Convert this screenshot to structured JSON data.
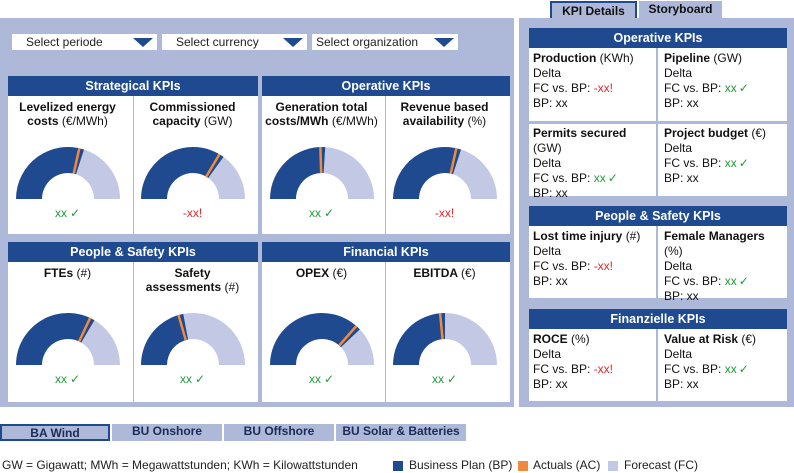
{
  "tabs": {
    "kpi_details": "KPI Details",
    "storyboard": "Storyboard"
  },
  "filters": {
    "period": "Select periode",
    "currency": "Select currency",
    "organization": "Select organization"
  },
  "groups": {
    "strategical": "Strategical KPIs",
    "operative": "Operative KPIs",
    "people_safety": "People & Safety KPIs",
    "financial": "Financial KPIs"
  },
  "tiles": [
    {
      "title": "Levelized energy",
      "title2": "costs",
      "unit": "(€/MWh)",
      "status": "xx",
      "mark": "✓",
      "state": "ok",
      "bp_share": 0.6,
      "actual": 0.57
    },
    {
      "title": "Commissioned",
      "title2": "capacity",
      "unit": "(GW)",
      "status": "-xx!",
      "mark": "",
      "state": "bad",
      "bp_share": 0.7,
      "actual": 0.67
    },
    {
      "title": "Generation total",
      "title2": "costs/MWh",
      "unit": "(€/MWh)",
      "status": "xx",
      "mark": "✓",
      "state": "ok",
      "bp_share": 0.52,
      "actual": 0.49
    },
    {
      "title": "Revenue based",
      "title2": "availability",
      "unit": "(%)",
      "status": "-xx!",
      "mark": "",
      "state": "bad",
      "bp_share": 0.6,
      "actual": 0.57
    },
    {
      "title": "FTEs",
      "title2": "",
      "unit": "(#)",
      "status": "xx",
      "mark": "✓",
      "state": "ok",
      "bp_share": 0.67,
      "actual": 0.64
    },
    {
      "title": "Safety",
      "title2": "assessments",
      "unit": "(#)",
      "status": "xx",
      "mark": "✓",
      "state": "ok",
      "bp_share": 0.44,
      "actual": 0.41
    },
    {
      "title": "OPEX",
      "title2": "",
      "unit": "(€)",
      "status": "xx",
      "mark": "✓",
      "state": "ok",
      "bp_share": 0.76,
      "actual": 0.73
    },
    {
      "title": "EBITDA",
      "title2": "",
      "unit": "(€)",
      "status": "xx",
      "mark": "✓",
      "state": "ok",
      "bp_share": 0.5,
      "actual": 0.47
    }
  ],
  "right": {
    "operative_title": "Operative KPIs",
    "people_title": "People & Safety KPIs",
    "finance_title": "Finanzielle KPIs",
    "cells": [
      {
        "name": "Production",
        "unit": "(KWh)",
        "delta": "Delta",
        "fc_label": "FC vs. BP:",
        "fc": "-xx!",
        "fc_mark": "",
        "state": "bad",
        "bp": "BP: xx"
      },
      {
        "name": "Pipeline",
        "unit": "(GW)",
        "delta": "Delta",
        "fc_label": "FC vs. BP:",
        "fc": "xx",
        "fc_mark": "✓",
        "state": "ok",
        "bp": "BP: xx"
      },
      {
        "name": "Permits secured",
        "unit": "(GW)",
        "delta": "Delta",
        "fc_label": "FC vs. BP:",
        "fc": "xx",
        "fc_mark": "✓",
        "state": "ok",
        "bp": "BP: xx"
      },
      {
        "name": "Project budget",
        "unit": "(€)",
        "delta": "Delta",
        "fc_label": "FC vs. BP:",
        "fc": "xx",
        "fc_mark": "✓",
        "state": "ok",
        "bp": "BP: xx"
      },
      {
        "name": "Lost time injury",
        "unit": "(#)",
        "delta": "Delta",
        "fc_label": "FC vs. BP:",
        "fc": "-xx!",
        "fc_mark": "",
        "state": "bad",
        "bp": "BP: xx"
      },
      {
        "name": "Female Managers",
        "unit": "(%)",
        "delta": "Delta",
        "fc_label": "FC vs. BP:",
        "fc": "xx",
        "fc_mark": "✓",
        "state": "ok",
        "bp": "BP: xx"
      },
      {
        "name": "ROCE",
        "unit": "(%)",
        "delta": "Delta",
        "fc_label": "FC vs. BP:",
        "fc": "-xx!",
        "fc_mark": "",
        "state": "bad",
        "bp": "BP: xx"
      },
      {
        "name": "Value at Risk",
        "unit": "(€)",
        "delta": "Delta",
        "fc_label": "FC vs. BP:",
        "fc": "xx",
        "fc_mark": "✓",
        "state": "ok",
        "bp": "BP: xx"
      }
    ]
  },
  "bu_buttons": [
    "BA Wind",
    "BU Onshore",
    "BU Offshore",
    "BU Solar & Batteries"
  ],
  "legend": {
    "abbreviations": "GW = Gigawatt; MWh = Megawattstunden; KWh = Kilowattstunden",
    "bp": "Business Plan (BP)",
    "ac": "Actuals (AC)",
    "fc": "Forecast (FC)"
  },
  "colors": {
    "bp": "#1f4a8f",
    "ac": "#f08a3c",
    "fc": "#c3c9e4",
    "ok": "#1f9a3a",
    "bad": "#e4262b"
  }
}
